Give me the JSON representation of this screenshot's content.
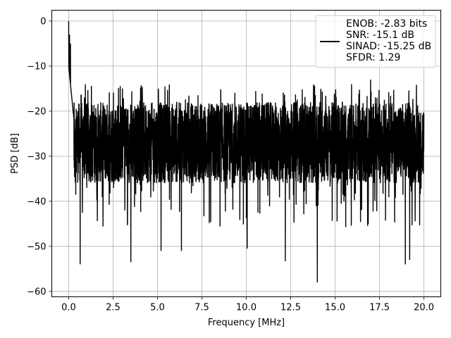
{
  "chart_data": {
    "type": "line",
    "xlabel": "Frequency [MHz]",
    "ylabel": "PSD [dB]",
    "xlim": [
      -0.95,
      20.95
    ],
    "ylim": [
      -61.2,
      2.4
    ],
    "xticks": [
      0.0,
      2.5,
      5.0,
      7.5,
      10.0,
      12.5,
      15.0,
      17.5,
      20.0
    ],
    "xtick_labels": [
      "0.0",
      "2.5",
      "5.0",
      "7.5",
      "10.0",
      "12.5",
      "15.0",
      "17.5",
      "20.0"
    ],
    "yticks": [
      0,
      -10,
      -20,
      -30,
      -40,
      -50,
      -60
    ],
    "ytick_labels": [
      "0",
      "−10",
      "−20",
      "−30",
      "−40",
      "−50",
      "−60"
    ],
    "grid": true,
    "legend_position": "top-right",
    "legend_lines": [
      "ENOB: -2.83 bits",
      "SNR: -15.1 dB",
      "SINAD: -15.25 dB",
      "SFDR: 1.29"
    ],
    "series": [
      {
        "color": "#000000",
        "x_start": 0.0,
        "x_end": 20.0,
        "points": 3000,
        "peak_value": 0.0,
        "typical_upper": -18.0,
        "typical_lower": -36.0,
        "minimum": -58.0,
        "notable_minima": [
          {
            "x": 0.65,
            "y": -54.0
          },
          {
            "x": 3.5,
            "y": -53.5
          },
          {
            "x": 5.2,
            "y": -51.0
          },
          {
            "x": 6.35,
            "y": -51.0
          },
          {
            "x": 10.05,
            "y": -50.5
          },
          {
            "x": 12.2,
            "y": -53.3
          },
          {
            "x": 14.0,
            "y": -58.0
          },
          {
            "x": 18.95,
            "y": -54.0
          },
          {
            "x": 19.2,
            "y": -53.0
          }
        ],
        "notable_maxima": [
          {
            "x": 0.0,
            "y": 0.0
          },
          {
            "x": 0.05,
            "y": -3.0
          },
          {
            "x": 0.1,
            "y": -5.0
          },
          {
            "x": 17.0,
            "y": -13.0
          }
        ]
      }
    ]
  }
}
